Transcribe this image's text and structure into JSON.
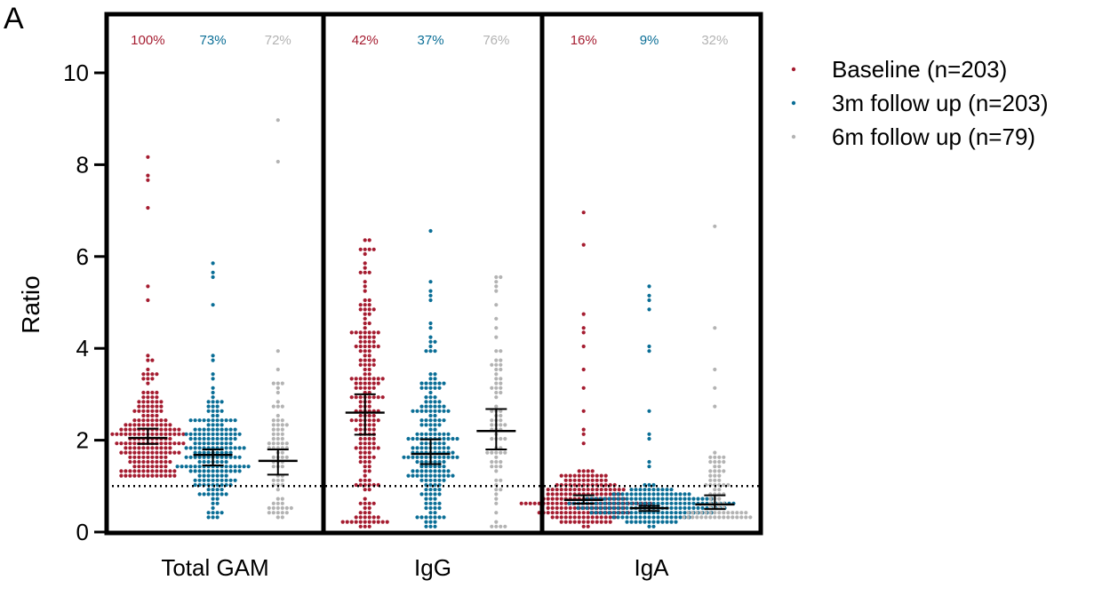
{
  "chart_data": {
    "type": "scatter",
    "panel_label": "A",
    "title": "",
    "xlabel": "",
    "ylabel": "Ratio",
    "ylim": [
      0,
      11
    ],
    "y_ticks": [
      0,
      2,
      4,
      6,
      8,
      10
    ],
    "threshold_line": 1,
    "legend_position": "right",
    "series": [
      {
        "name": "Baseline (n=203)",
        "color": "#A51C30"
      },
      {
        "name": "3m follow up (n=203)",
        "color": "#0A6E96"
      },
      {
        "name": "6m follow up (n=79)",
        "color": "#B3B3B3"
      }
    ],
    "groups": [
      {
        "label": "Total GAM",
        "subgroups": [
          {
            "series": 0,
            "percent_label": "100%",
            "n": 203,
            "median": 2.05,
            "ci": [
              1.92,
              2.25
            ],
            "min": 1.2,
            "max": 8.2
          },
          {
            "series": 1,
            "percent_label": "73%",
            "n": 203,
            "median": 1.68,
            "ci": [
              1.45,
              1.8
            ],
            "min": 0.3,
            "max": 5.9
          },
          {
            "series": 2,
            "percent_label": "72%",
            "n": 79,
            "median": 1.55,
            "ci": [
              1.25,
              1.8
            ],
            "min": 0.35,
            "max": 9.0
          }
        ]
      },
      {
        "label": "IgG",
        "subgroups": [
          {
            "series": 0,
            "percent_label": "42%",
            "n": 203,
            "median": 2.6,
            "ci": [
              2.12,
              3.0
            ],
            "min": 0.15,
            "max": 6.4
          },
          {
            "series": 1,
            "percent_label": "37%",
            "n": 203,
            "median": 1.7,
            "ci": [
              1.48,
              2.02
            ],
            "min": 0.15,
            "max": 6.6
          },
          {
            "series": 2,
            "percent_label": "76%",
            "n": 79,
            "median": 2.2,
            "ci": [
              1.8,
              2.68
            ],
            "min": 0.1,
            "max": 5.6
          }
        ]
      },
      {
        "label": "IgA",
        "subgroups": [
          {
            "series": 0,
            "percent_label": "16%",
            "n": 203,
            "median": 0.7,
            "ci": [
              0.62,
              0.8
            ],
            "min": 0.15,
            "max": 7.0
          },
          {
            "series": 1,
            "percent_label": "9%",
            "n": 203,
            "median": 0.52,
            "ci": [
              0.46,
              0.57
            ],
            "min": 0.15,
            "max": 5.4
          },
          {
            "series": 2,
            "percent_label": "32%",
            "n": 79,
            "median": 0.6,
            "ci": [
              0.5,
              0.8
            ],
            "min": 0.3,
            "max": 6.7
          }
        ]
      }
    ]
  }
}
